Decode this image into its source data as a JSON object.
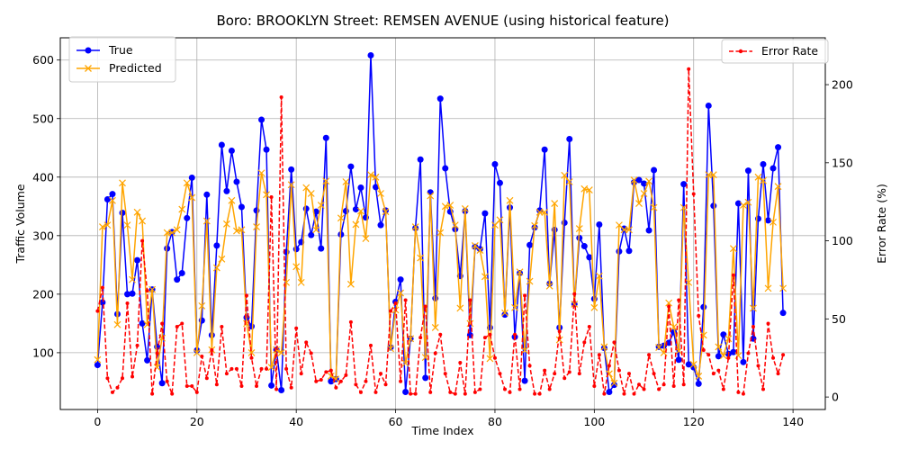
{
  "chart_data": {
    "type": "line",
    "title": "Boro: BROOKLYN Street: REMSEN AVENUE (using historical feature)",
    "xlabel": "Time Index",
    "ylabel": "Traffic Volume",
    "y2label": "Error Rate (%)",
    "xlim": [
      -7.5,
      146.5
    ],
    "ylim": [
      3,
      638
    ],
    "y2lim": [
      -8,
      230
    ],
    "x_ticks": [
      0,
      20,
      40,
      60,
      80,
      100,
      120,
      140
    ],
    "y_ticks": [
      100,
      200,
      300,
      400,
      500,
      600
    ],
    "y2_ticks": [
      0,
      50,
      100,
      150,
      200
    ],
    "grid": true,
    "legend_left": {
      "placement": "upper-left",
      "entries": [
        "True",
        "Predicted"
      ]
    },
    "legend_right": {
      "placement": "upper-right",
      "entries": [
        "Error Rate"
      ]
    },
    "series": [
      {
        "name": "True",
        "axis": "left",
        "color": "#0000ff",
        "marker": "circle",
        "linestyle": "solid",
        "values": [
          79,
          186,
          362,
          371,
          166,
          339,
          200,
          201,
          258,
          150,
          87,
          208,
          110,
          48,
          278,
          306,
          225,
          236,
          330,
          399,
          104,
          155,
          370,
          130,
          283,
          455,
          376,
          445,
          392,
          349,
          160,
          145,
          343,
          498,
          447,
          44,
          105,
          36,
          272,
          413,
          277,
          289,
          346,
          301,
          341,
          278,
          467,
          51,
          55,
          302,
          342,
          418,
          345,
          382,
          331,
          608,
          383,
          318,
          343,
          109,
          187,
          225,
          33,
          124,
          313,
          430,
          57,
          374,
          193,
          534,
          415,
          341,
          311,
          231,
          342,
          130,
          281,
          277,
          338,
          143,
          422,
          390,
          165,
          348,
          127,
          236,
          52,
          284,
          314,
          343,
          447,
          218,
          310,
          143,
          322,
          465,
          183,
          296,
          282,
          263,
          192,
          319,
          108,
          33,
          45,
          273,
          312,
          274,
          391,
          395,
          389,
          309,
          412,
          110,
          112,
          117,
          135,
          88,
          388,
          80,
          75,
          47,
          178,
          522,
          351,
          94,
          131,
          98,
          101,
          355,
          84,
          411,
          124,
          329,
          422,
          326,
          415,
          451,
          168
        ]
      },
      {
        "name": "Predicted",
        "axis": "left",
        "color": "#ffa500",
        "marker": "x",
        "linestyle": "solid",
        "values": [
          88,
          315,
          318,
          360,
          148,
          390,
          318,
          225,
          340,
          325,
          148,
          208,
          75,
          125,
          305,
          305,
          310,
          345,
          390,
          365,
          100,
          180,
          325,
          105,
          245,
          260,
          320,
          360,
          308,
          310,
          150,
          100,
          315,
          407,
          370,
          75,
          105,
          100,
          220,
          387,
          247,
          220,
          382,
          372,
          310,
          352,
          393,
          60,
          55,
          330,
          392,
          217,
          319,
          342,
          295,
          404,
          400,
          372,
          341,
          107,
          173,
          202,
          82,
          124,
          315,
          262,
          92,
          368,
          143,
          305,
          350,
          352,
          318,
          176,
          346,
          150,
          283,
          275,
          230,
          90,
          318,
          327,
          168,
          360,
          177,
          238,
          104,
          222,
          317,
          340,
          340,
          214,
          355,
          122,
          403,
          392,
          183,
          312,
          380,
          378,
          177,
          231,
          110,
          64,
          48,
          318,
          310,
          310,
          395,
          355,
          372,
          393,
          348,
          109,
          100,
          185,
          144,
          103,
          348,
          220,
          80,
          60,
          130,
          404,
          404,
          110,
          95,
          124,
          278,
          95,
          352,
          357,
          176,
          400,
          394,
          210,
          323,
          384,
          210
        ]
      },
      {
        "name": "Error Rate",
        "axis": "right",
        "color": "#ff0000",
        "marker": "dot",
        "linestyle": "dashed",
        "values": [
          55,
          70,
          12,
          3,
          6,
          12,
          60,
          13,
          33,
          100,
          68,
          2,
          28,
          47,
          10,
          2,
          45,
          47,
          7,
          7,
          3,
          26,
          12,
          30,
          8,
          45,
          15,
          18,
          18,
          7,
          65,
          25,
          7,
          18,
          18,
          128,
          5,
          192,
          18,
          6,
          44,
          15,
          35,
          28,
          10,
          11,
          16,
          17,
          6,
          10,
          14,
          48,
          8,
          3,
          10,
          33,
          3,
          15,
          8,
          55,
          60,
          10,
          62,
          2,
          2,
          38,
          58,
          3,
          28,
          40,
          15,
          3,
          2,
          22,
          2,
          62,
          3,
          5,
          38,
          40,
          25,
          15,
          5,
          3,
          40,
          5,
          65,
          20,
          2,
          2,
          17,
          5,
          15,
          42,
          12,
          16,
          66,
          15,
          35,
          45,
          7,
          27,
          2,
          20,
          35,
          17,
          2,
          15,
          2,
          8,
          5,
          27,
          15,
          5,
          8,
          58,
          7,
          62,
          8,
          210,
          130,
          52,
          30,
          27,
          15,
          17,
          5,
          25,
          78,
          3,
          2,
          28,
          45,
          20,
          5,
          47,
          25,
          15,
          27
        ]
      }
    ]
  }
}
